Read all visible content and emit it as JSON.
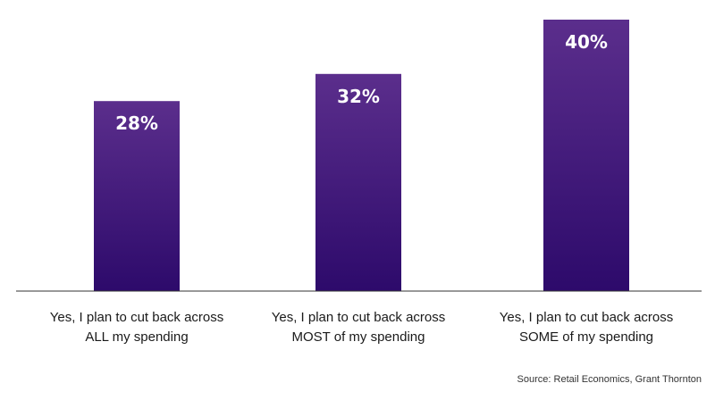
{
  "chart_data": {
    "type": "bar",
    "categories": [
      [
        "Yes, I plan to cut back across",
        "ALL my spending"
      ],
      [
        "Yes, I plan to cut back across",
        "MOST of my spending"
      ],
      [
        "Yes, I plan to cut back across",
        "SOME of my spending"
      ]
    ],
    "values": [
      28,
      32,
      40
    ],
    "value_labels": [
      "28%",
      "32%",
      "40%"
    ],
    "ylim": [
      0,
      40
    ],
    "grid": false,
    "colors": {
      "bar_top": "#5b2e8c",
      "bar_bottom": "#2d0a6b",
      "axis": "#333333"
    }
  },
  "source": "Source: Retail Economics, Grant Thornton"
}
